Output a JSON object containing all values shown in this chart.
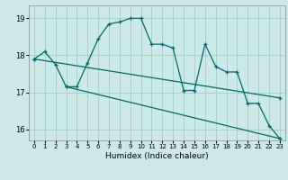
{
  "xlabel": "Humidex (Indice chaleur)",
  "xlim": [
    -0.5,
    23.5
  ],
  "ylim": [
    15.7,
    19.35
  ],
  "yticks": [
    16,
    17,
    18,
    19
  ],
  "xticks": [
    0,
    1,
    2,
    3,
    4,
    5,
    6,
    7,
    8,
    9,
    10,
    11,
    12,
    13,
    14,
    15,
    16,
    17,
    18,
    19,
    20,
    21,
    22,
    23
  ],
  "background_color": "#cce8e8",
  "line_color": "#006868",
  "grid_color": "#aacece",
  "main_data": {
    "x": [
      0,
      1,
      2,
      3,
      4,
      5,
      6,
      7,
      8,
      9,
      10,
      11,
      12,
      13,
      14,
      15,
      16,
      17,
      18,
      19,
      20,
      21,
      22,
      23
    ],
    "y": [
      17.9,
      18.1,
      17.75,
      17.15,
      17.15,
      17.8,
      18.45,
      18.85,
      18.9,
      19.0,
      19.0,
      18.3,
      18.3,
      18.2,
      17.05,
      17.05,
      18.3,
      17.7,
      17.55,
      17.55,
      16.7,
      16.7,
      16.1,
      15.75
    ]
  },
  "trend1": {
    "x": [
      0,
      23
    ],
    "y": [
      17.9,
      16.85
    ]
  },
  "trend2": {
    "x": [
      3,
      23
    ],
    "y": [
      17.15,
      15.75
    ]
  }
}
